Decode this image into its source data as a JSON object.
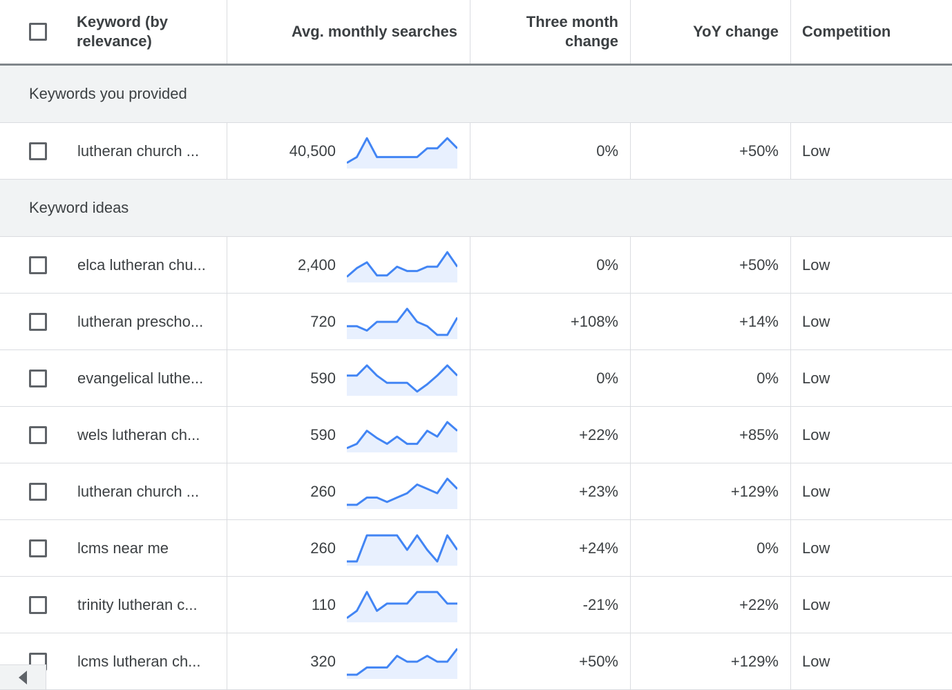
{
  "header": {
    "keyword": "Keyword (by relevance)",
    "avg": "Avg. monthly searches",
    "three_month": "Three month change",
    "yoy": "YoY change",
    "competition": "Competition"
  },
  "sections": {
    "provided": "Keywords you provided",
    "ideas": "Keyword ideas"
  },
  "rows": [
    {
      "keyword": "lutheran church ...",
      "avg": "40,500",
      "three": "0%",
      "yoy": "+50%",
      "comp": "Low",
      "trend": [
        0.1,
        0.3,
        0.95,
        0.3,
        0.3,
        0.3,
        0.3,
        0.3,
        0.6,
        0.6,
        0.95,
        0.6
      ]
    },
    {
      "keyword": "elca lutheran chu...",
      "avg": "2,400",
      "three": "0%",
      "yoy": "+50%",
      "comp": "Low",
      "trend": [
        0.1,
        0.4,
        0.6,
        0.15,
        0.15,
        0.45,
        0.3,
        0.3,
        0.45,
        0.45,
        0.95,
        0.45
      ]
    },
    {
      "keyword": "lutheran prescho...",
      "avg": "720",
      "three": "+108%",
      "yoy": "+14%",
      "comp": "Low",
      "trend": [
        0.35,
        0.35,
        0.2,
        0.5,
        0.5,
        0.5,
        0.95,
        0.5,
        0.35,
        0.05,
        0.05,
        0.65
      ]
    },
    {
      "keyword": "evangelical luthe...",
      "avg": "590",
      "three": "0%",
      "yoy": "0%",
      "comp": "Low",
      "trend": [
        0.6,
        0.6,
        0.95,
        0.6,
        0.35,
        0.35,
        0.35,
        0.05,
        0.3,
        0.6,
        0.95,
        0.6
      ]
    },
    {
      "keyword": "wels lutheran ch...",
      "avg": "590",
      "three": "+22%",
      "yoy": "+85%",
      "comp": "Low",
      "trend": [
        0.05,
        0.2,
        0.65,
        0.4,
        0.2,
        0.45,
        0.2,
        0.2,
        0.65,
        0.45,
        0.95,
        0.65
      ]
    },
    {
      "keyword": "lutheran church ...",
      "avg": "260",
      "three": "+23%",
      "yoy": "+129%",
      "comp": "Low",
      "trend": [
        0.05,
        0.05,
        0.3,
        0.3,
        0.15,
        0.3,
        0.45,
        0.75,
        0.6,
        0.45,
        0.95,
        0.6
      ]
    },
    {
      "keyword": "lcms near me",
      "avg": "260",
      "three": "+24%",
      "yoy": "0%",
      "comp": "Low",
      "trend": [
        0.05,
        0.05,
        0.95,
        0.95,
        0.95,
        0.95,
        0.45,
        0.95,
        0.45,
        0.05,
        0.95,
        0.45
      ]
    },
    {
      "keyword": "trinity lutheran c...",
      "avg": "110",
      "three": "-21%",
      "yoy": "+22%",
      "comp": "Low",
      "trend": [
        0.05,
        0.3,
        0.95,
        0.3,
        0.55,
        0.55,
        0.55,
        0.95,
        0.95,
        0.95,
        0.55,
        0.55
      ]
    },
    {
      "keyword": "lcms lutheran ch...",
      "avg": "320",
      "three": "+50%",
      "yoy": "+129%",
      "comp": "Low",
      "trend": [
        0.05,
        0.05,
        0.3,
        0.3,
        0.3,
        0.7,
        0.5,
        0.5,
        0.7,
        0.5,
        0.5,
        0.95
      ]
    }
  ]
}
